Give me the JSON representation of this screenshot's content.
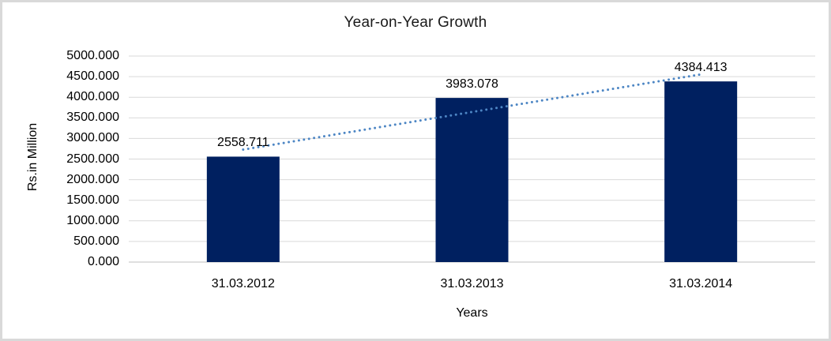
{
  "chart_data": {
    "type": "bar",
    "title": "Year-on-Year Growth",
    "xlabel": "Years",
    "ylabel": "Rs.in Million",
    "categories": [
      "31.03.2012",
      "31.03.2013",
      "31.03.2014"
    ],
    "values": [
      2558.711,
      3983.078,
      4384.413
    ],
    "data_labels": [
      "2558.711",
      "3983.078",
      "4384.413"
    ],
    "ylim": [
      0,
      5000
    ],
    "ytick_step": 500,
    "ytick_labels": [
      "5000.000",
      "4500.000",
      "4000.000",
      "3500.000",
      "3000.000",
      "2500.000",
      "2000.000",
      "1500.000",
      "1000.000",
      "500.000",
      "0.000"
    ],
    "grid": true,
    "legend": false,
    "trendline": {
      "type": "linear",
      "style": "dotted",
      "color": "#4D86C4"
    },
    "colors": {
      "bar": "#002060",
      "gridline": "#D9D9D9",
      "axis_line": "#BFBFBF",
      "text": "#000000",
      "frame_border": "#D9D9D9",
      "background": "#FFFFFF"
    }
  }
}
